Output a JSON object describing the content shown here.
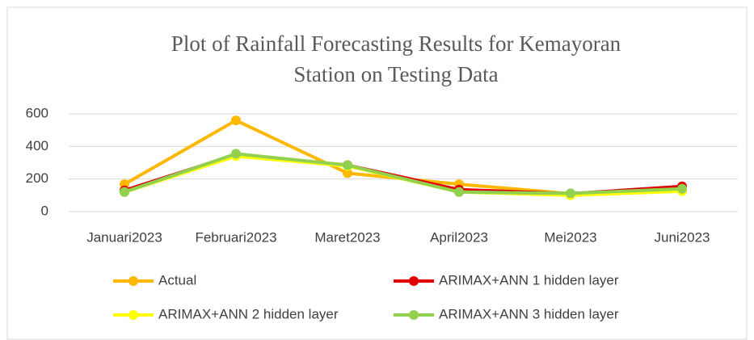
{
  "chart_data": {
    "type": "line",
    "title": [
      "Plot of Rainfall Forecasting Results for Kemayoran",
      "Station on Testing Data"
    ],
    "categories": [
      "Januari2023",
      "Februari2023",
      "Maret2023",
      "April2023",
      "Mei2023",
      "Juni2023"
    ],
    "series": [
      {
        "name": "Actual",
        "color": "#FFB800",
        "values": [
          168,
          560,
          236,
          168,
          110,
          130
        ]
      },
      {
        "name": "ARIMAX+ANN 1 hidden layer",
        "color": "#E00000",
        "values": [
          130,
          350,
          285,
          135,
          110,
          155
        ]
      },
      {
        "name": "ARIMAX+ANN 2 hidden layer",
        "color": "#FFFF00",
        "values": [
          120,
          340,
          280,
          120,
          100,
          125
        ]
      },
      {
        "name": "ARIMAX+ANN 3 hidden layer",
        "color": "#92D050",
        "values": [
          120,
          355,
          285,
          120,
          112,
          140
        ]
      }
    ],
    "ylim": [
      0,
      600
    ],
    "yticks": [
      0,
      200,
      400,
      600
    ],
    "grid": true
  }
}
